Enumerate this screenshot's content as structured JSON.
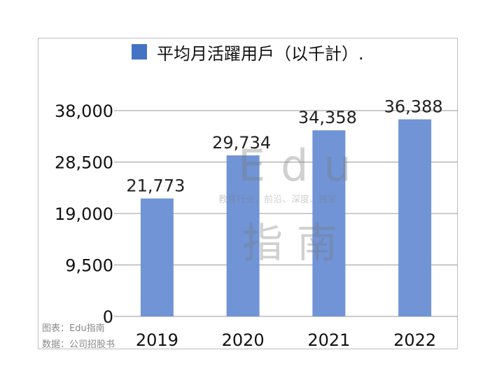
{
  "chart_data": {
    "type": "bar",
    "legend": "平均月活躍用戶（以千計）.",
    "categories": [
      "2019",
      "2020",
      "2021",
      "2022"
    ],
    "values": [
      21773,
      29734,
      34358,
      36388
    ],
    "value_labels": [
      "21,773",
      "29,734",
      "34,358",
      "36,388"
    ],
    "yticks": [
      0,
      9500,
      19000,
      28500,
      38000
    ],
    "ytick_labels": [
      "0",
      "9,500",
      "19,000",
      "28,500",
      "38,000"
    ],
    "ylim": [
      0,
      38000
    ],
    "bar_color": "#7094d6",
    "legend_color": "#4472c4",
    "grid": true,
    "legend_position": "top"
  },
  "footer": {
    "line1": "图表：Edu指南",
    "line2": "数据：公司招股书"
  },
  "watermark": {
    "brand": "Edu",
    "tagline": "教育行业，前沿、深度、独家",
    "name": "指南"
  }
}
